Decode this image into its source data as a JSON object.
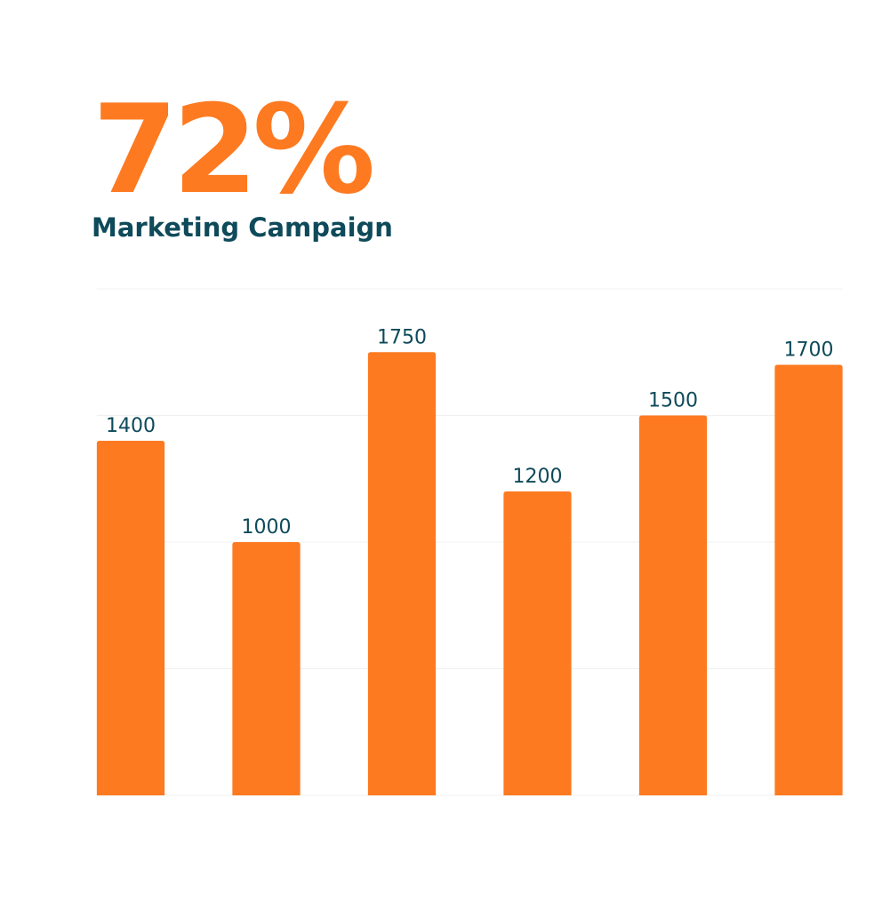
{
  "chart_data": {
    "type": "bar",
    "title": "72%",
    "subtitle": "Marketing Campaign",
    "categories": [
      null,
      null,
      null,
      null,
      null,
      null
    ],
    "values": [
      1400,
      1000,
      1750,
      1200,
      1500,
      1700
    ],
    "color": "#fd7a21",
    "label_color": "#0e4a5a",
    "ylim": [
      0,
      2000
    ],
    "yticks": [
      0,
      500,
      1000,
      1500,
      2000
    ],
    "grid": true
  }
}
